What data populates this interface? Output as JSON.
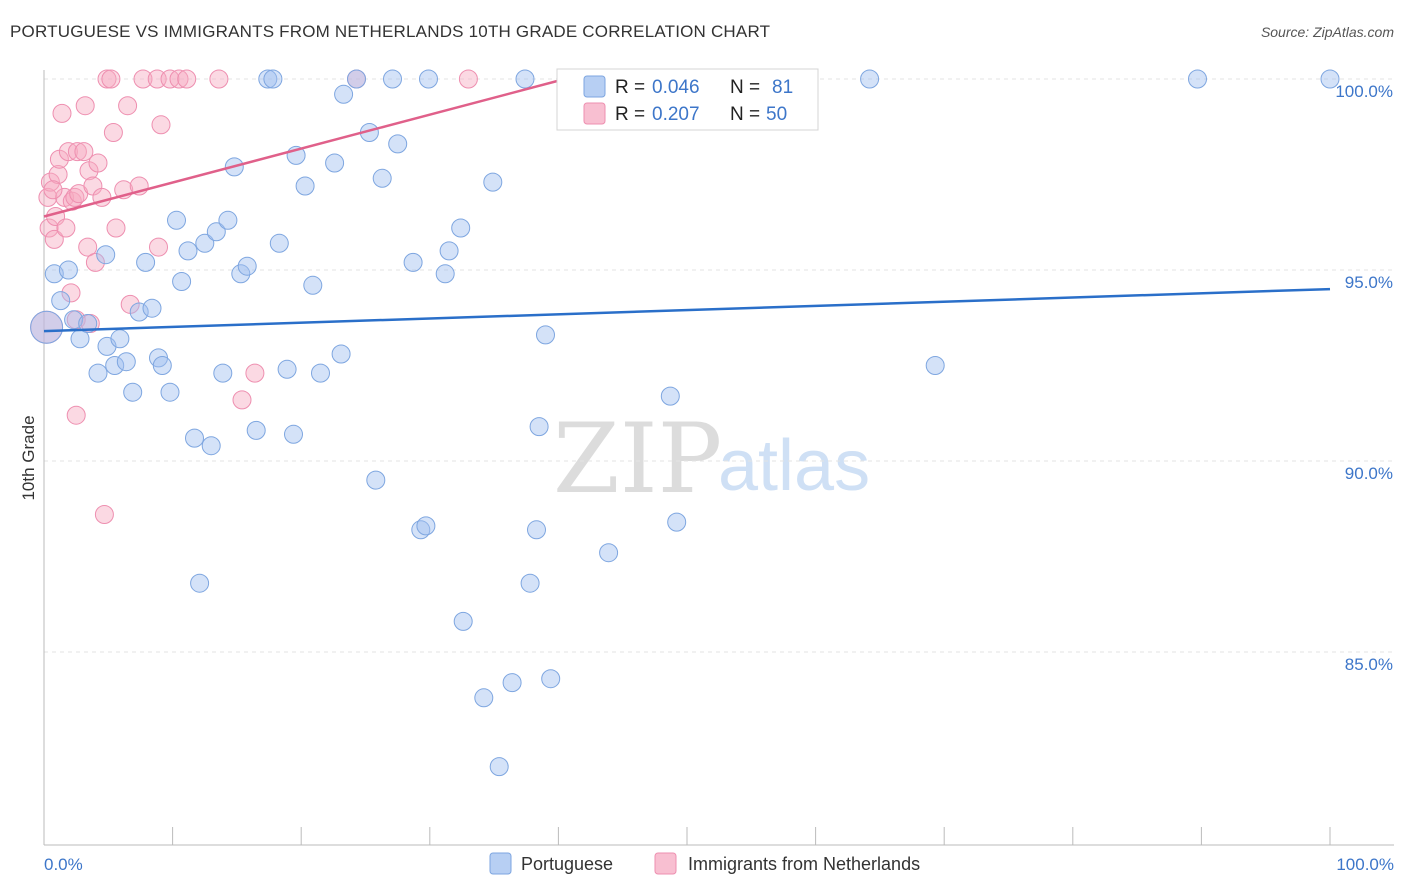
{
  "header": {
    "title": "PORTUGUESE VS IMMIGRANTS FROM NETHERLANDS 10TH GRADE CORRELATION CHART",
    "source": "Source: ZipAtlas.com"
  },
  "watermark": {
    "zip": "ZIP",
    "atlas": "atlas"
  },
  "stats": {
    "rows": [
      {
        "r_label": "R =",
        "r_value": "0.046",
        "n_label": "N =",
        "n_value": "81",
        "color": "#9fbfef"
      },
      {
        "r_label": "R =",
        "r_value": "0.207",
        "n_label": "N =",
        "n_value": "50",
        "color": "#f6aac2"
      }
    ]
  },
  "colors": {
    "blue": "#9fbfef",
    "blue_line": "#2a6fc9",
    "pink": "#f6aac2",
    "pink_line": "#e0608a",
    "tick_label": "#3d76c9"
  },
  "chart_data": {
    "type": "scatter",
    "title": "PORTUGUESE VS IMMIGRANTS FROM NETHERLANDS 10TH GRADE CORRELATION CHART",
    "xlabel": "",
    "ylabel": "10th Grade",
    "xlim": [
      0,
      100
    ],
    "ylim": [
      80.5,
      100.5
    ],
    "x_tick_labels": [
      "0.0%",
      "100.0%"
    ],
    "y_ticks": [
      85,
      90,
      95,
      100
    ],
    "y_tick_labels": [
      "85.0%",
      "90.0%",
      "95.0%",
      "100.0%"
    ],
    "grid": true,
    "legend_position": "bottom",
    "series": [
      {
        "name": "Portuguese",
        "color": "#9fbfef",
        "trend": {
          "x": [
            0,
            100
          ],
          "y": [
            93.4,
            94.5
          ]
        },
        "points": [
          [
            0.2,
            93.5
          ],
          [
            0.8,
            94.9
          ],
          [
            1.3,
            94.2
          ],
          [
            1.9,
            95.0
          ],
          [
            2.3,
            93.7
          ],
          [
            2.8,
            93.2
          ],
          [
            3.4,
            93.6
          ],
          [
            4.2,
            92.3
          ],
          [
            4.8,
            95.4
          ],
          [
            4.9,
            93.0
          ],
          [
            5.5,
            92.5
          ],
          [
            5.9,
            93.2
          ],
          [
            6.4,
            92.6
          ],
          [
            6.9,
            91.8
          ],
          [
            7.4,
            93.9
          ],
          [
            7.9,
            95.2
          ],
          [
            8.4,
            94.0
          ],
          [
            8.9,
            92.7
          ],
          [
            9.2,
            92.5
          ],
          [
            9.8,
            91.8
          ],
          [
            10.3,
            96.3
          ],
          [
            10.7,
            94.7
          ],
          [
            11.2,
            95.5
          ],
          [
            11.7,
            90.6
          ],
          [
            12.1,
            86.8
          ],
          [
            12.5,
            95.7
          ],
          [
            13.0,
            90.4
          ],
          [
            13.4,
            96.0
          ],
          [
            13.9,
            92.3
          ],
          [
            14.3,
            96.3
          ],
          [
            14.8,
            97.7
          ],
          [
            15.3,
            94.9
          ],
          [
            15.8,
            95.1
          ],
          [
            16.5,
            90.8
          ],
          [
            17.4,
            100.0
          ],
          [
            17.8,
            100.0
          ],
          [
            18.3,
            95.7
          ],
          [
            18.9,
            92.4
          ],
          [
            19.4,
            90.7
          ],
          [
            19.6,
            98.0
          ],
          [
            20.3,
            97.2
          ],
          [
            20.9,
            94.6
          ],
          [
            21.5,
            92.3
          ],
          [
            22.6,
            97.8
          ],
          [
            23.1,
            92.8
          ],
          [
            23.3,
            99.6
          ],
          [
            24.3,
            100.0
          ],
          [
            25.3,
            98.6
          ],
          [
            25.8,
            89.5
          ],
          [
            26.3,
            97.4
          ],
          [
            27.1,
            100.0
          ],
          [
            27.5,
            98.3
          ],
          [
            28.7,
            95.2
          ],
          [
            29.3,
            88.2
          ],
          [
            29.7,
            88.3
          ],
          [
            29.9,
            100.0
          ],
          [
            31.2,
            94.9
          ],
          [
            31.5,
            95.5
          ],
          [
            32.4,
            96.1
          ],
          [
            32.6,
            85.8
          ],
          [
            34.2,
            83.8
          ],
          [
            34.9,
            97.3
          ],
          [
            35.4,
            82.0
          ],
          [
            36.4,
            84.2
          ],
          [
            37.4,
            100.0
          ],
          [
            37.8,
            86.8
          ],
          [
            38.3,
            88.2
          ],
          [
            38.5,
            90.9
          ],
          [
            39.0,
            93.3
          ],
          [
            39.4,
            84.3
          ],
          [
            43.5,
            100.0
          ],
          [
            43.9,
            87.6
          ],
          [
            48.3,
            100.0
          ],
          [
            48.7,
            91.7
          ],
          [
            49.2,
            88.4
          ],
          [
            52.3,
            100.0
          ],
          [
            64.2,
            100.0
          ],
          [
            69.3,
            92.5
          ],
          [
            89.7,
            100.0
          ],
          [
            100.0,
            100.0
          ]
        ]
      },
      {
        "name": "Immigrants from Netherlands",
        "color": "#f6aac2",
        "trend": {
          "x": [
            0,
            40.5
          ],
          "y": [
            96.4,
            100.0
          ]
        },
        "points": [
          [
            0.2,
            93.5
          ],
          [
            0.3,
            96.9
          ],
          [
            0.4,
            96.1
          ],
          [
            0.5,
            97.3
          ],
          [
            0.8,
            95.8
          ],
          [
            0.9,
            96.4
          ],
          [
            1.1,
            97.5
          ],
          [
            1.2,
            97.9
          ],
          [
            1.4,
            99.1
          ],
          [
            1.6,
            96.9
          ],
          [
            1.7,
            96.1
          ],
          [
            1.9,
            98.1
          ],
          [
            2.1,
            94.4
          ],
          [
            2.2,
            96.8
          ],
          [
            2.4,
            96.9
          ],
          [
            2.6,
            98.1
          ],
          [
            2.7,
            97.0
          ],
          [
            2.5,
            93.7
          ],
          [
            2.5,
            91.2
          ],
          [
            3.1,
            98.1
          ],
          [
            3.2,
            99.3
          ],
          [
            3.4,
            95.6
          ],
          [
            3.5,
            97.6
          ],
          [
            3.6,
            93.6
          ],
          [
            3.8,
            97.2
          ],
          [
            4.0,
            95.2
          ],
          [
            4.2,
            97.8
          ],
          [
            4.5,
            96.9
          ],
          [
            4.7,
            88.6
          ],
          [
            4.9,
            100.0
          ],
          [
            5.2,
            100.0
          ],
          [
            5.4,
            98.6
          ],
          [
            5.6,
            96.1
          ],
          [
            6.2,
            97.1
          ],
          [
            6.5,
            99.3
          ],
          [
            6.7,
            94.1
          ],
          [
            7.4,
            97.2
          ],
          [
            7.7,
            100.0
          ],
          [
            8.8,
            100.0
          ],
          [
            8.9,
            95.6
          ],
          [
            9.1,
            98.8
          ],
          [
            9.8,
            100.0
          ],
          [
            10.5,
            100.0
          ],
          [
            11.1,
            100.0
          ],
          [
            13.6,
            100.0
          ],
          [
            15.4,
            91.6
          ],
          [
            16.4,
            92.3
          ],
          [
            24.3,
            100.0
          ],
          [
            33.0,
            100.0
          ],
          [
            0.7,
            97.1
          ]
        ]
      }
    ]
  }
}
